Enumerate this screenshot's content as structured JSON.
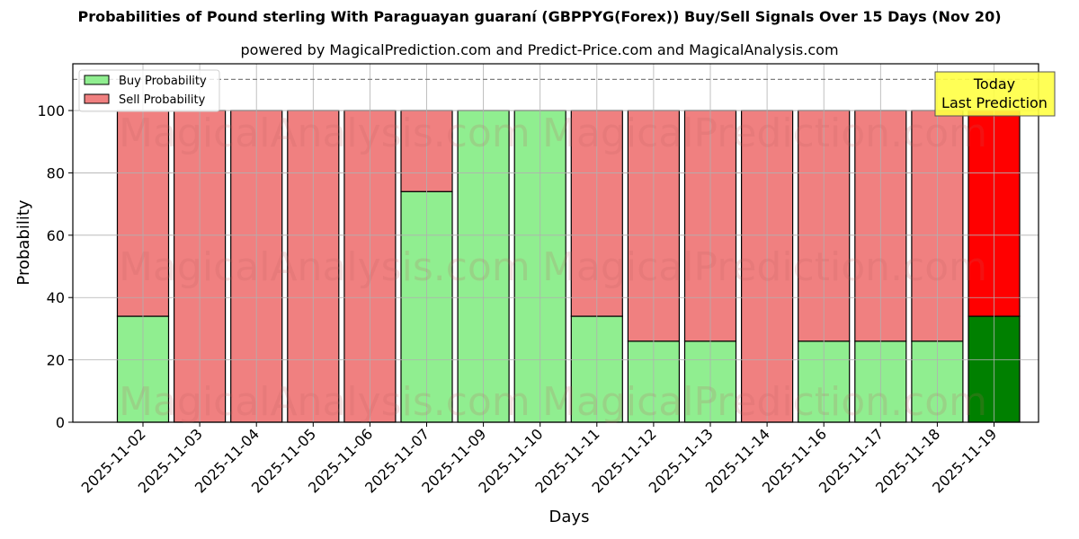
{
  "title": "Probabilities of Pound sterling With Paraguayan guaraní (GBPPYG(Forex)) Buy/Sell Signals Over 15 Days (Nov 20)",
  "subtitle": "powered by MagicalPrediction.com and Predict-Price.com and MagicalAnalysis.com",
  "annotation": {
    "line1": "Today",
    "line2": "Last Prediction"
  },
  "watermarks": [
    "MagicalAnalysis.com",
    "MagicalPrediction.com"
  ],
  "colors": {
    "buy": "#90ee90",
    "sell": "#f08080",
    "today_buy": "#008000",
    "today_sell": "#ff0000",
    "annotation_bg": "#ffff44",
    "grid": "#b0b0b0"
  },
  "chart_data": {
    "type": "bar",
    "stacked": true,
    "title": "Probabilities of Pound sterling With Paraguayan guaraní (GBPPYG(Forex)) Buy/Sell Signals Over 15 Days (Nov 20)",
    "subtitle": "powered by MagicalPrediction.com and Predict-Price.com and MagicalAnalysis.com",
    "xlabel": "Days",
    "ylabel": "Probability",
    "ylim": [
      0,
      115
    ],
    "yticks": [
      0,
      20,
      40,
      60,
      80,
      100
    ],
    "grid": true,
    "legend_position": "upper left",
    "reference_line": {
      "y": 110,
      "style": "dashed"
    },
    "categories": [
      "2025-11-02",
      "2025-11-03",
      "2025-11-04",
      "2025-11-05",
      "2025-11-06",
      "2025-11-07",
      "2025-11-09",
      "2025-11-10",
      "2025-11-11",
      "2025-11-12",
      "2025-11-13",
      "2025-11-14",
      "2025-11-16",
      "2025-11-17",
      "2025-11-18",
      "2025-11-19"
    ],
    "series": [
      {
        "name": "Buy Probability",
        "values": [
          34,
          0,
          0,
          0,
          0,
          74,
          100,
          100,
          34,
          26,
          26,
          0,
          26,
          26,
          26,
          34
        ]
      },
      {
        "name": "Sell Probability",
        "values": [
          66,
          100,
          100,
          100,
          100,
          26,
          0,
          0,
          66,
          74,
          74,
          100,
          74,
          74,
          74,
          66
        ]
      }
    ],
    "highlight": {
      "category": "2025-11-19",
      "label": "Today\nLast Prediction"
    }
  }
}
